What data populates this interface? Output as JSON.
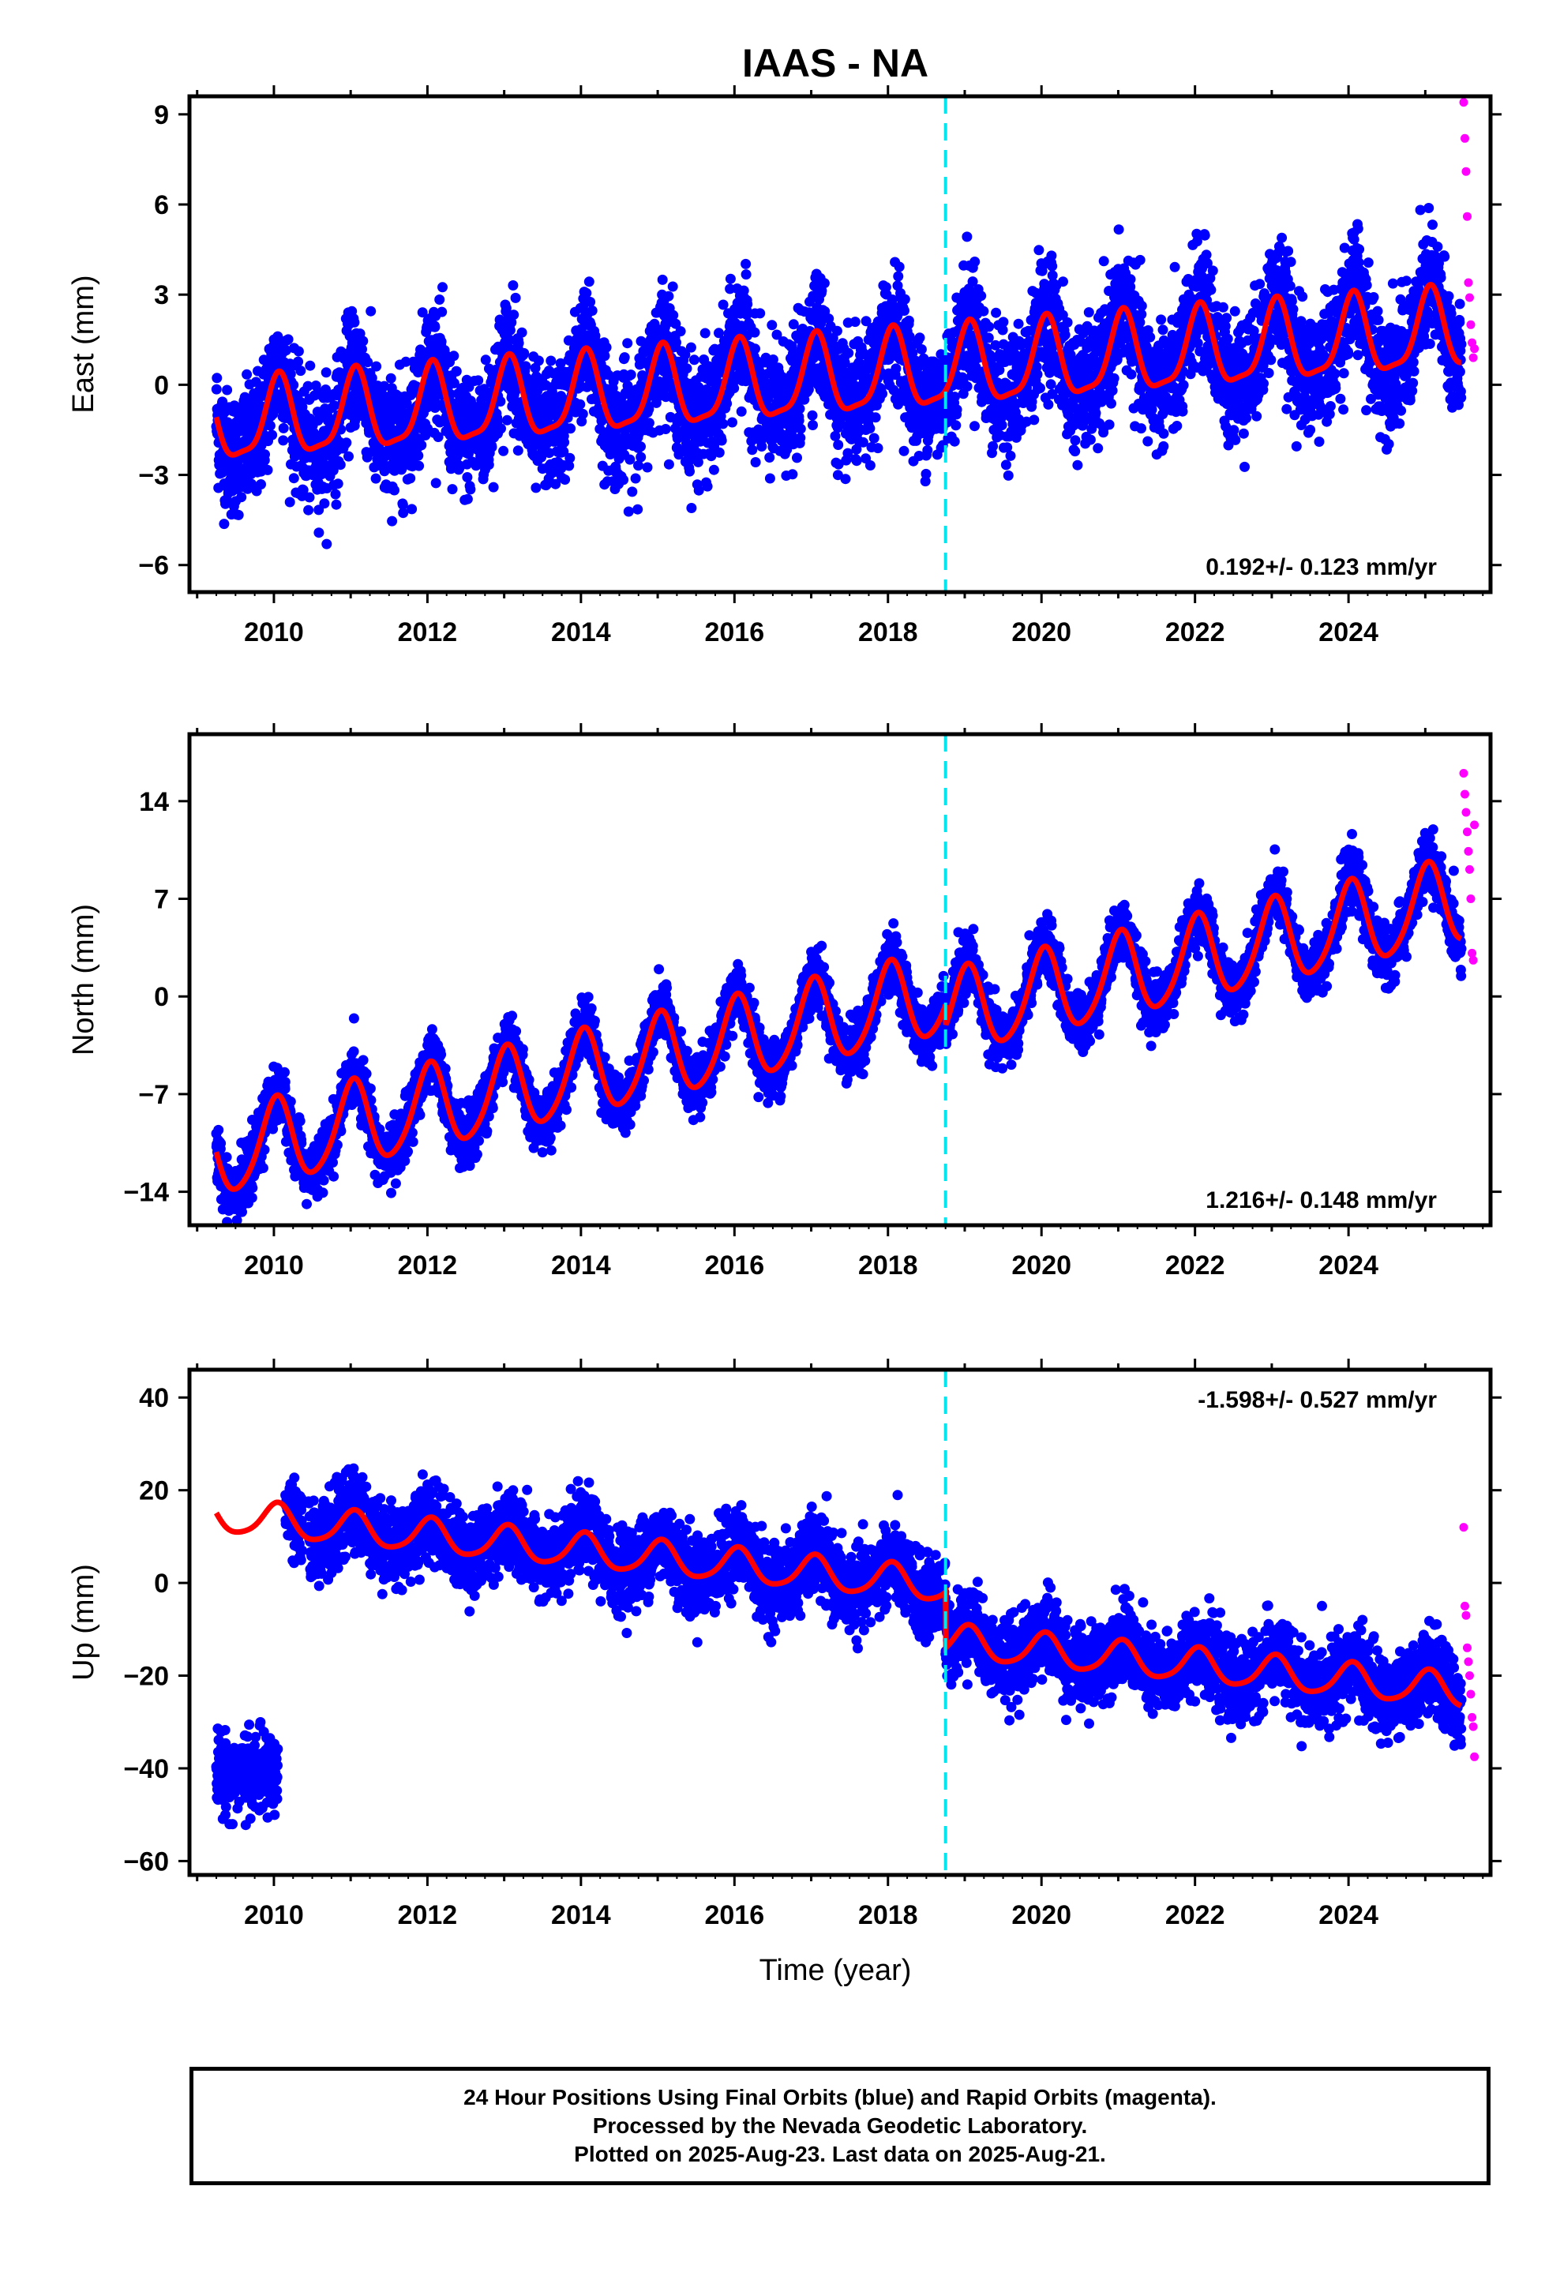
{
  "chart_data": {
    "type": "scatter",
    "title": "IAAS - NA",
    "xlabel": "Time (year)",
    "xlim": [
      2008.9,
      2025.85
    ],
    "x_ticks": [
      2010,
      2012,
      2014,
      2016,
      2018,
      2020,
      2022,
      2024
    ],
    "equipment_change_year": 2018.75,
    "data_start_year": 2009.25,
    "final_end_year": 2025.47,
    "rapid_start_year": 2025.5,
    "last_year": 2025.64,
    "colors": {
      "final_orbits": "#0000ff",
      "rapid_orbits": "#ff00ff",
      "model_fit": "#ff0000",
      "equipment_change": "#00e5ee"
    },
    "panels": [
      {
        "name": "East",
        "ylabel": "East (mm)",
        "ylim": [
          -6.9,
          9.6
        ],
        "y_ticks": [
          -6,
          -3,
          0,
          3,
          6,
          9
        ],
        "rate_label": "0.192+/- 0.123 mm/yr",
        "rate_position": "bottom-right",
        "model": {
          "intercept": -1.35,
          "rate": 0.192,
          "annual_amplitude": 1.3,
          "annual_phase": 1.2,
          "semiannual_amplitude": 0.35,
          "offset_at_change": 0.0
        },
        "early_segment": null,
        "noise": 1.0,
        "rapid_points": [
          9.4,
          8.2,
          7.1,
          5.6,
          3.4,
          2.9,
          2.0,
          1.4,
          0.9,
          1.2
        ]
      },
      {
        "name": "North",
        "ylabel": "North (mm)",
        "ylim": [
          -16.4,
          18.8
        ],
        "y_ticks": [
          -14,
          -7,
          0,
          7,
          14
        ],
        "rate_label": "1.216+/- 0.148 mm/yr",
        "rate_position": "bottom-right",
        "model": {
          "intercept": -11.4,
          "rate": 1.216,
          "annual_amplitude": 3.0,
          "annual_phase": 1.4,
          "semiannual_amplitude": 0.4,
          "offset_at_change": -1.5
        },
        "early_segment": null,
        "noise": 1.0,
        "rapid_points": [
          16.0,
          14.5,
          13.2,
          11.8,
          10.4,
          9.1,
          7.0,
          3.1,
          2.6,
          12.3
        ]
      },
      {
        "name": "Up",
        "ylabel": "Up (mm)",
        "ylim": [
          -63,
          46
        ],
        "y_ticks": [
          -60,
          -40,
          -20,
          0,
          20,
          40
        ],
        "rate_label": "-1.598+/- 0.527 mm/yr",
        "rate_position": "top-right",
        "model": {
          "intercept": 14.5,
          "rate": -1.598,
          "annual_amplitude": 3.6,
          "annual_phase": 1.3,
          "semiannual_amplitude": 0.6,
          "offset_at_change": -12.0
        },
        "early_segment": {
          "start": 2009.25,
          "end": 2010.05,
          "mean": -41,
          "noise": 4
        },
        "noise": 4.2,
        "rapid_points": [
          12.0,
          -5.0,
          -7.0,
          -14.0,
          -17.0,
          -20.0,
          -24.0,
          -29.0,
          -31.0,
          -37.5
        ]
      }
    ]
  },
  "footer": {
    "line1": "24 Hour Positions Using Final Orbits (blue) and Rapid Orbits (magenta).",
    "line2": "Processed by the Nevada Geodetic Laboratory.",
    "line3": "Plotted on 2025-Aug-23. Last data on 2025-Aug-21."
  }
}
